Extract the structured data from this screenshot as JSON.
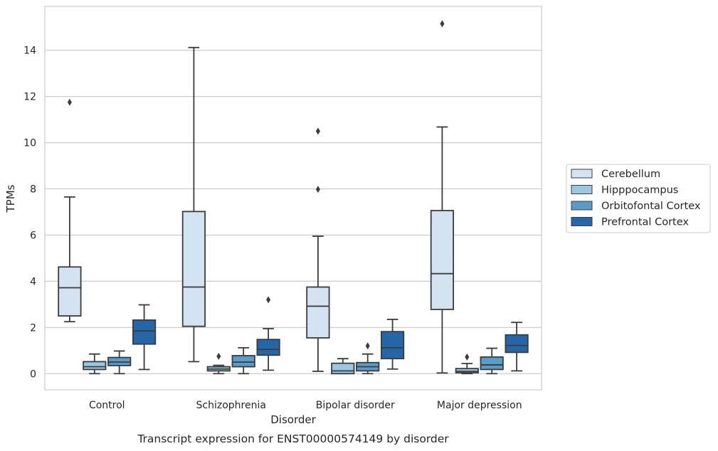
{
  "caption": "Transcript expression for ENST00000574149 by disorder",
  "chart_data": {
    "type": "box",
    "xlabel": "Disorder",
    "ylabel": "TPMs",
    "ylim": [
      -0.7,
      15.9
    ],
    "yticks": [
      0,
      2,
      4,
      6,
      8,
      10,
      12,
      14
    ],
    "grid": "horizontal",
    "legend_position": "right",
    "categories": [
      "Control",
      "Schizophrenia",
      "Bipolar disorder",
      "Major depression"
    ],
    "series": [
      {
        "name": "Cerebellum",
        "color": "#d4e3f2",
        "boxes": [
          {
            "whisker_low": 2.25,
            "q1": 2.5,
            "median": 3.72,
            "q3": 4.62,
            "whisker_high": 7.65,
            "outliers": [
              11.75
            ]
          },
          {
            "whisker_low": 0.52,
            "q1": 2.05,
            "median": 3.75,
            "q3": 7.02,
            "whisker_high": 14.12,
            "outliers": []
          },
          {
            "whisker_low": 0.1,
            "q1": 1.55,
            "median": 2.92,
            "q3": 3.75,
            "whisker_high": 5.95,
            "outliers": [
              7.98,
              10.5
            ]
          },
          {
            "whisker_low": 0.03,
            "q1": 2.78,
            "median": 4.33,
            "q3": 7.06,
            "whisker_high": 10.68,
            "outliers": [
              15.15
            ]
          }
        ]
      },
      {
        "name": "Hipppocampus",
        "color": "#9ac8e0",
        "boxes": [
          {
            "whisker_low": 0.0,
            "q1": 0.18,
            "median": 0.3,
            "q3": 0.52,
            "whisker_high": 0.85,
            "outliers": []
          },
          {
            "whisker_low": 0.0,
            "q1": 0.12,
            "median": 0.2,
            "q3": 0.3,
            "whisker_high": 0.36,
            "outliers": [
              0.75
            ]
          },
          {
            "whisker_low": 0.0,
            "q1": 0.0,
            "median": 0.12,
            "q3": 0.45,
            "whisker_high": 0.65,
            "outliers": []
          },
          {
            "whisker_low": 0.0,
            "q1": 0.04,
            "median": 0.1,
            "q3": 0.22,
            "whisker_high": 0.44,
            "outliers": [
              0.72
            ]
          }
        ]
      },
      {
        "name": "Orbitofontal Cortex",
        "color": "#5b9bc9",
        "boxes": [
          {
            "whisker_low": 0.0,
            "q1": 0.35,
            "median": 0.5,
            "q3": 0.7,
            "whisker_high": 0.98,
            "outliers": []
          },
          {
            "whisker_low": 0.0,
            "q1": 0.3,
            "median": 0.5,
            "q3": 0.78,
            "whisker_high": 1.12,
            "outliers": []
          },
          {
            "whisker_low": 0.0,
            "q1": 0.12,
            "median": 0.3,
            "q3": 0.48,
            "whisker_high": 0.85,
            "outliers": [
              1.2
            ]
          },
          {
            "whisker_low": 0.0,
            "q1": 0.18,
            "median": 0.38,
            "q3": 0.72,
            "whisker_high": 1.1,
            "outliers": []
          }
        ]
      },
      {
        "name": "Prefrontal Cortex",
        "color": "#2466a8",
        "boxes": [
          {
            "whisker_low": 0.18,
            "q1": 1.28,
            "median": 1.85,
            "q3": 2.32,
            "whisker_high": 2.98,
            "outliers": []
          },
          {
            "whisker_low": 0.15,
            "q1": 0.8,
            "median": 1.05,
            "q3": 1.48,
            "whisker_high": 1.95,
            "outliers": [
              3.2
            ]
          },
          {
            "whisker_low": 0.2,
            "q1": 0.65,
            "median": 1.12,
            "q3": 1.82,
            "whisker_high": 2.35,
            "outliers": []
          },
          {
            "whisker_low": 0.12,
            "q1": 0.92,
            "median": 1.22,
            "q3": 1.68,
            "whisker_high": 2.22,
            "outliers": []
          }
        ]
      }
    ]
  }
}
